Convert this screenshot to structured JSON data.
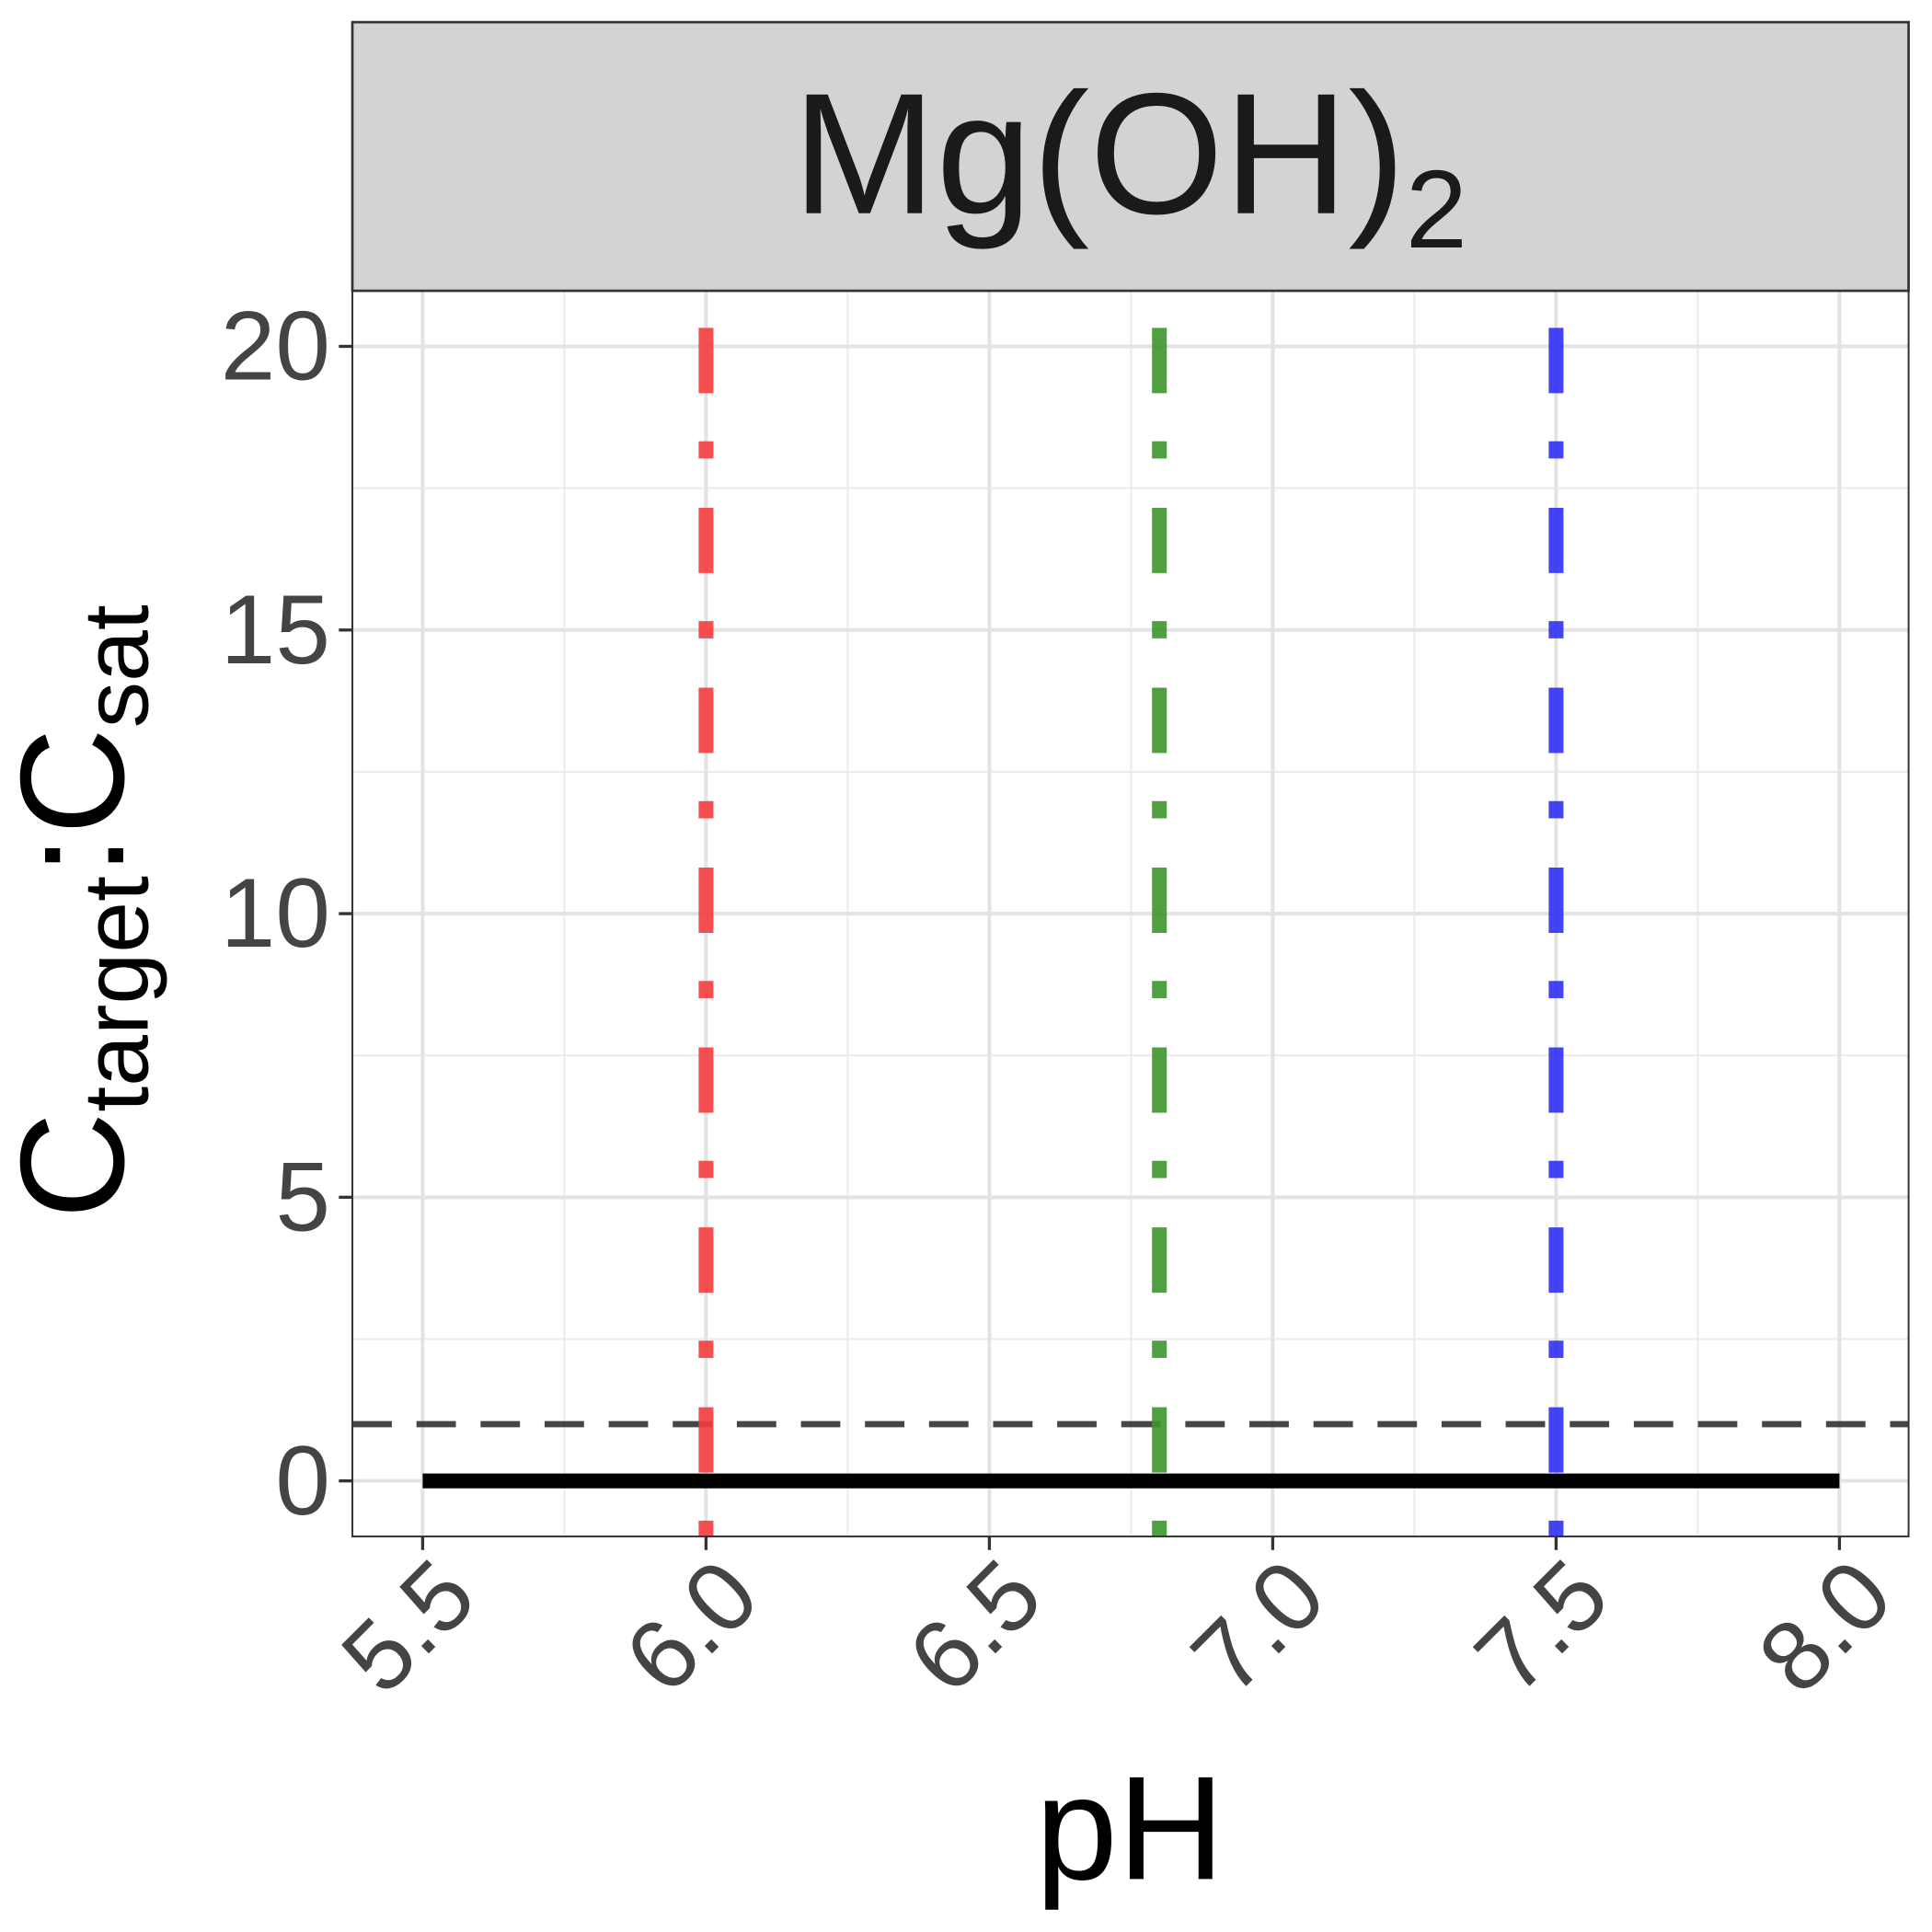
{
  "chart_data": {
    "type": "line",
    "title": [
      "Mg(OH)",
      "2"
    ],
    "xlabel": "pH",
    "ylabel": [
      "C",
      "target",
      ":",
      "C",
      "sat"
    ],
    "x": [
      5.5,
      8.0
    ],
    "series": [
      {
        "color": "#000000",
        "values": [
          0,
          0
        ]
      }
    ],
    "hlines": [
      {
        "value": 1,
        "color": "#333333"
      }
    ],
    "vlines": [
      {
        "x": 6.0,
        "color": "#f53c3c"
      },
      {
        "x": 6.8,
        "color": "#3f952f"
      },
      {
        "x": 7.5,
        "color": "#3030f5"
      }
    ],
    "xlim": [
      5.376,
      8.122
    ],
    "ylim": [
      -0.98,
      20.98
    ],
    "xticks": [
      5.5,
      {
        "value": 6,
        "label": "6.0"
      },
      6.5,
      {
        "value": 7,
        "label": "7.0"
      },
      7.5,
      {
        "value": 8,
        "label": "8.0"
      }
    ],
    "yticks": [
      0,
      5,
      10,
      15,
      20
    ],
    "xminor": [
      5.75,
      6.25,
      6.75,
      7.25,
      7.75
    ],
    "yminor": [
      2.5,
      7.5,
      12.5,
      17.5
    ],
    "grid": true
  }
}
